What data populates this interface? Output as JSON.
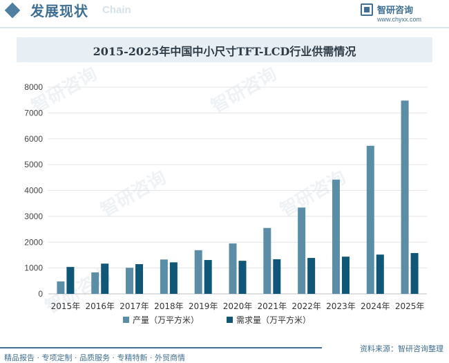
{
  "header": {
    "title": "发展现状",
    "subtitle": "Chain",
    "brand_name": "智研咨询",
    "brand_url": "www.chyxx.com"
  },
  "footer": {
    "services": "精品报告 · 专项定制 · 品质服务 · 专精特新 · 外贸商情",
    "source": "资料来源：智研咨询整理"
  },
  "chart_data": {
    "type": "bar",
    "title": "2015-2025年中国中小尺寸TFT-LCD行业供需情况",
    "categories": [
      "2015年",
      "2016年",
      "2017年",
      "2018年",
      "2019年",
      "2020年",
      "2021年",
      "2022年",
      "2023年",
      "2024年",
      "2025年"
    ],
    "series": [
      {
        "name": "产量（万平方米）",
        "color": "#5b8ea6",
        "values": [
          480,
          830,
          1010,
          1330,
          1690,
          1950,
          2550,
          3340,
          4420,
          5730,
          7480
        ]
      },
      {
        "name": "需求量（万平方米）",
        "color": "#0f5677",
        "values": [
          1040,
          1170,
          1150,
          1220,
          1310,
          1280,
          1340,
          1390,
          1440,
          1520,
          1580
        ]
      }
    ],
    "ylim": [
      0,
      8000
    ],
    "yticks": [
      0,
      1000,
      2000,
      3000,
      4000,
      5000,
      6000,
      7000,
      8000
    ],
    "grid": true,
    "legend": "bottom"
  }
}
